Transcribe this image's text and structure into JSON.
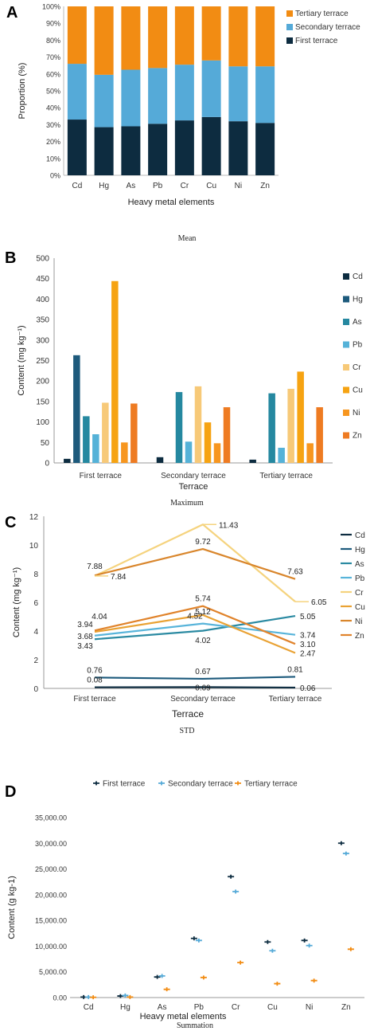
{
  "captions": {
    "mean": "Mean",
    "maximum": "Maximum",
    "std": "STD",
    "summation": "Summation"
  },
  "chart_data": [
    {
      "panel": "A",
      "type": "bar",
      "stacked": true,
      "categories": [
        "Cd",
        "Hg",
        "As",
        "Pb",
        "Cr",
        "Cu",
        "Ni",
        "Zn"
      ],
      "series": [
        {
          "name": "First terrace",
          "color": "#0d2c40",
          "values": [
            33,
            28.5,
            29,
            30.5,
            32.5,
            34.5,
            32,
            31
          ]
        },
        {
          "name": "Secondary terrace",
          "color": "#55aad8",
          "values": [
            33,
            31,
            33.5,
            33,
            33,
            33.5,
            32.5,
            33.5
          ]
        },
        {
          "name": "Tertiary terrace",
          "color": "#f28c13",
          "values": [
            34,
            40.5,
            37.5,
            36.5,
            34.5,
            32,
            35.5,
            35.5
          ]
        }
      ],
      "xlabel": "Heavy metal elements",
      "ylabel": "Proportion (%)",
      "ylim": [
        0,
        100
      ],
      "yticks": [
        "0%",
        "10%",
        "20%",
        "30%",
        "40%",
        "50%",
        "60%",
        "70%",
        "80%",
        "90%",
        "100%"
      ],
      "legend": "top-right"
    },
    {
      "panel": "B",
      "type": "bar",
      "categories": [
        "First terrace",
        "Secondary terrace",
        "Tertiary terrace"
      ],
      "series": [
        {
          "name": "Cd",
          "color": "#0d2c40",
          "values": [
            10,
            14,
            8
          ]
        },
        {
          "name": "Hg",
          "color": "#1d5a7c",
          "values": [
            263,
            0,
            0
          ]
        },
        {
          "name": "As",
          "color": "#2588a0",
          "values": [
            114,
            173,
            170
          ]
        },
        {
          "name": "Pb",
          "color": "#55b2d8",
          "values": [
            70,
            52,
            37
          ]
        },
        {
          "name": "Cr",
          "color": "#f7c978",
          "values": [
            147,
            187,
            181
          ]
        },
        {
          "name": "Cu",
          "color": "#f6a312",
          "values": [
            444,
            99,
            223
          ]
        },
        {
          "name": "Ni",
          "color": "#f7961f",
          "values": [
            50,
            48,
            48
          ]
        },
        {
          "name": "Zn",
          "color": "#ee7b22",
          "values": [
            145,
            136,
            136
          ]
        }
      ],
      "xlabel": "Terrace",
      "ylabel": "Content (mg kg⁻¹)",
      "ylim": [
        0,
        500
      ],
      "yticks": [
        "0",
        "50",
        "100",
        "150",
        "200",
        "250",
        "300",
        "350",
        "400",
        "450",
        "500"
      ],
      "legend": "right"
    },
    {
      "panel": "C",
      "type": "line",
      "categories": [
        "First terrace",
        "Secondary terrace",
        "Tertiary terrace"
      ],
      "series": [
        {
          "name": "Cd",
          "color": "#0d2c40",
          "values": [
            0.08,
            0.09,
            0.06
          ]
        },
        {
          "name": "Hg",
          "color": "#1d5a7c",
          "values": [
            0.76,
            0.67,
            0.81
          ]
        },
        {
          "name": "As",
          "color": "#2b8aa2",
          "values": [
            3.43,
            4.02,
            5.05
          ]
        },
        {
          "name": "Pb",
          "color": "#58b4da",
          "values": [
            3.68,
            4.52,
            3.74
          ]
        },
        {
          "name": "Cr",
          "color": "#f5d37e",
          "values": [
            7.84,
            11.43,
            6.05
          ]
        },
        {
          "name": "Cu",
          "color": "#e9a234",
          "values": [
            3.94,
            5.12,
            2.47
          ]
        },
        {
          "name": "Ni",
          "color": "#d9862c",
          "values": [
            7.88,
            9.72,
            7.63
          ]
        },
        {
          "name": "Zn",
          "color": "#e0832b",
          "values": [
            4.04,
            5.74,
            3.1
          ]
        }
      ],
      "labels": [
        {
          "text": "7.88",
          "x": 0,
          "y": 8.0,
          "dx": 0,
          "anchor": "middle",
          "above": true
        },
        {
          "text": "7.84",
          "x": 0,
          "y": 7.84,
          "dx": 20,
          "anchor": "start",
          "above": false
        },
        {
          "text": "4.04",
          "x": 0,
          "y": 4.5,
          "dx": 6,
          "anchor": "middle",
          "above": true
        },
        {
          "text": "3.94",
          "x": 0,
          "y": 3.94,
          "dx": -12,
          "anchor": "middle",
          "above": true
        },
        {
          "text": "3.68",
          "x": 0,
          "y": 3.68,
          "dx": -12,
          "anchor": "middle",
          "above": false
        },
        {
          "text": "3.43",
          "x": 0,
          "y": 3.0,
          "dx": -12,
          "anchor": "middle",
          "above": false
        },
        {
          "text": "0.76",
          "x": 0,
          "y": 0.76,
          "dx": 0,
          "anchor": "middle",
          "above": true
        },
        {
          "text": "0.08",
          "x": 0,
          "y": 0.08,
          "dx": 0,
          "anchor": "middle",
          "above": true
        },
        {
          "text": "11.43",
          "x": 1,
          "y": 11.43,
          "dx": 20,
          "anchor": "start",
          "above": false
        },
        {
          "text": "9.72",
          "x": 1,
          "y": 9.72,
          "dx": 0,
          "anchor": "middle",
          "above": true
        },
        {
          "text": "5.74",
          "x": 1,
          "y": 5.74,
          "dx": 0,
          "anchor": "middle",
          "above": true
        },
        {
          "text": "5.12",
          "x": 1,
          "y": 5.4,
          "dx": 0,
          "anchor": "middle",
          "above": false
        },
        {
          "text": "4.52",
          "x": 1,
          "y": 4.52,
          "dx": -10,
          "anchor": "middle",
          "above": true
        },
        {
          "text": "4.02",
          "x": 1,
          "y": 3.4,
          "dx": 0,
          "anchor": "middle",
          "above": false
        },
        {
          "text": "0.67",
          "x": 1,
          "y": 0.67,
          "dx": 0,
          "anchor": "middle",
          "above": true
        },
        {
          "text": "0.09",
          "x": 1,
          "y": 0.09,
          "dx": 0,
          "anchor": "middle",
          "above": false
        },
        {
          "text": "7.63",
          "x": 2,
          "y": 7.63,
          "dx": 0,
          "anchor": "middle",
          "above": true
        },
        {
          "text": "6.05",
          "x": 2,
          "y": 6.05,
          "dx": 20,
          "anchor": "start",
          "above": false
        },
        {
          "text": "5.05",
          "x": 2,
          "y": 5.05,
          "dx": 6,
          "anchor": "start",
          "above": false
        },
        {
          "text": "3.74",
          "x": 2,
          "y": 3.74,
          "dx": 6,
          "anchor": "start",
          "above": false
        },
        {
          "text": "3.10",
          "x": 2,
          "y": 3.1,
          "dx": 6,
          "anchor": "start",
          "above": false
        },
        {
          "text": "2.47",
          "x": 2,
          "y": 2.47,
          "dx": 6,
          "anchor": "start",
          "above": false
        },
        {
          "text": "0.81",
          "x": 2,
          "y": 0.81,
          "dx": 0,
          "anchor": "middle",
          "above": true
        },
        {
          "text": "0.06",
          "x": 2,
          "y": 0.06,
          "dx": 6,
          "anchor": "start",
          "above": false
        }
      ],
      "xlabel": "Terrace",
      "ylabel": "Content (mg kg⁻¹)",
      "ylim": [
        0,
        12
      ],
      "yticks": [
        "0",
        "2",
        "4",
        "6",
        "8",
        "10",
        "12"
      ],
      "legend": "right"
    },
    {
      "panel": "D",
      "type": "scatter",
      "categories": [
        "Cd",
        "Hg",
        "As",
        "Pb",
        "Cr",
        "Cu",
        "Ni",
        "Zn"
      ],
      "series": [
        {
          "name": "First terrace",
          "color": "#0d2c40",
          "values": [
            100,
            300,
            4000,
            11500,
            23500,
            10800,
            11100,
            30000
          ]
        },
        {
          "name": "Secondary terrace",
          "color": "#55aad8",
          "values": [
            100,
            400,
            4200,
            11100,
            20600,
            9100,
            10100,
            28000
          ]
        },
        {
          "name": "Tertiary terrace",
          "color": "#f28c13",
          "values": [
            50,
            100,
            1600,
            3900,
            6800,
            2700,
            3300,
            9400
          ]
        }
      ],
      "xlabel": "Heavy metal elements",
      "ylabel": "Content (g kg-1)",
      "ylim": [
        0,
        35000
      ],
      "yticks": [
        "0.00",
        "5,000.00",
        "10,000.00",
        "15,000.00",
        "20,000.00",
        "25,000.00",
        "30,000.00",
        "35,000.00"
      ],
      "legend": "top"
    }
  ]
}
